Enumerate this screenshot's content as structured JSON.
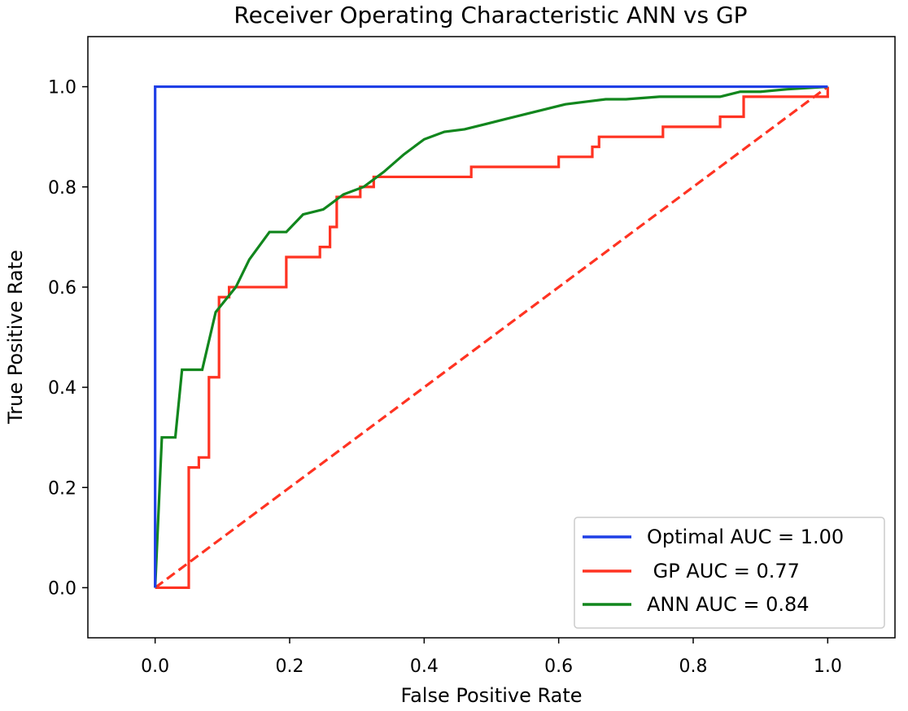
{
  "chart_data": {
    "type": "line",
    "title": "Receiver Operating Characteristic ANN vs GP",
    "xlabel": "False Positive Rate",
    "ylabel": "True Positive Rate",
    "xlim": [
      -0.1,
      1.1
    ],
    "ylim": [
      -0.1,
      1.1
    ],
    "xticks": [
      0.0,
      0.2,
      0.4,
      0.6,
      0.8,
      1.0
    ],
    "yticks": [
      0.0,
      0.2,
      0.4,
      0.6,
      0.8,
      1.0
    ],
    "xtick_labels": [
      "0.0",
      "0.2",
      "0.4",
      "0.6",
      "0.8",
      "1.0"
    ],
    "ytick_labels": [
      "0.0",
      "0.2",
      "0.4",
      "0.6",
      "0.8",
      "1.0"
    ],
    "grid": false,
    "legend_position": "bottom-right",
    "series": [
      {
        "name": "Optimal AUC = 1.00",
        "color": "#1f3fe6",
        "dash": "solid",
        "x": [
          0,
          0,
          1
        ],
        "y": [
          0,
          1,
          1
        ]
      },
      {
        "name": " GP AUC = 0.77",
        "color": "#ff3322",
        "dash": "solid",
        "x": [
          0,
          0.05,
          0.05,
          0.065,
          0.065,
          0.08,
          0.08,
          0.095,
          0.095,
          0.11,
          0.11,
          0.195,
          0.195,
          0.245,
          0.245,
          0.26,
          0.26,
          0.27,
          0.27,
          0.305,
          0.305,
          0.325,
          0.325,
          0.47,
          0.47,
          0.6,
          0.6,
          0.65,
          0.65,
          0.66,
          0.66,
          0.755,
          0.755,
          0.84,
          0.84,
          0.875,
          0.875,
          1.0,
          1.0
        ],
        "y": [
          0,
          0,
          0.24,
          0.24,
          0.26,
          0.26,
          0.42,
          0.42,
          0.58,
          0.58,
          0.6,
          0.6,
          0.66,
          0.66,
          0.68,
          0.68,
          0.72,
          0.72,
          0.78,
          0.78,
          0.8,
          0.8,
          0.82,
          0.82,
          0.84,
          0.84,
          0.86,
          0.86,
          0.88,
          0.88,
          0.9,
          0.9,
          0.92,
          0.92,
          0.94,
          0.94,
          0.98,
          0.98,
          1.0
        ]
      },
      {
        "name": "ANN AUC = 0.84",
        "color": "#11861d",
        "dash": "solid",
        "x": [
          0,
          0.01,
          0.03,
          0.04,
          0.07,
          0.09,
          0.12,
          0.14,
          0.17,
          0.195,
          0.22,
          0.25,
          0.28,
          0.31,
          0.34,
          0.37,
          0.4,
          0.43,
          0.46,
          0.49,
          0.52,
          0.55,
          0.58,
          0.61,
          0.64,
          0.67,
          0.7,
          0.75,
          0.8,
          0.84,
          0.87,
          0.9,
          0.94,
          1.0
        ],
        "y": [
          0,
          0.3,
          0.3,
          0.435,
          0.435,
          0.55,
          0.6,
          0.655,
          0.71,
          0.71,
          0.745,
          0.755,
          0.785,
          0.8,
          0.83,
          0.865,
          0.895,
          0.91,
          0.915,
          0.925,
          0.935,
          0.945,
          0.955,
          0.965,
          0.97,
          0.975,
          0.975,
          0.98,
          0.98,
          0.98,
          0.99,
          0.99,
          0.995,
          1.0
        ]
      },
      {
        "name": "",
        "color": "#ff3322",
        "dash": "dashed",
        "x": [
          0,
          1
        ],
        "y": [
          0,
          1
        ]
      }
    ]
  }
}
